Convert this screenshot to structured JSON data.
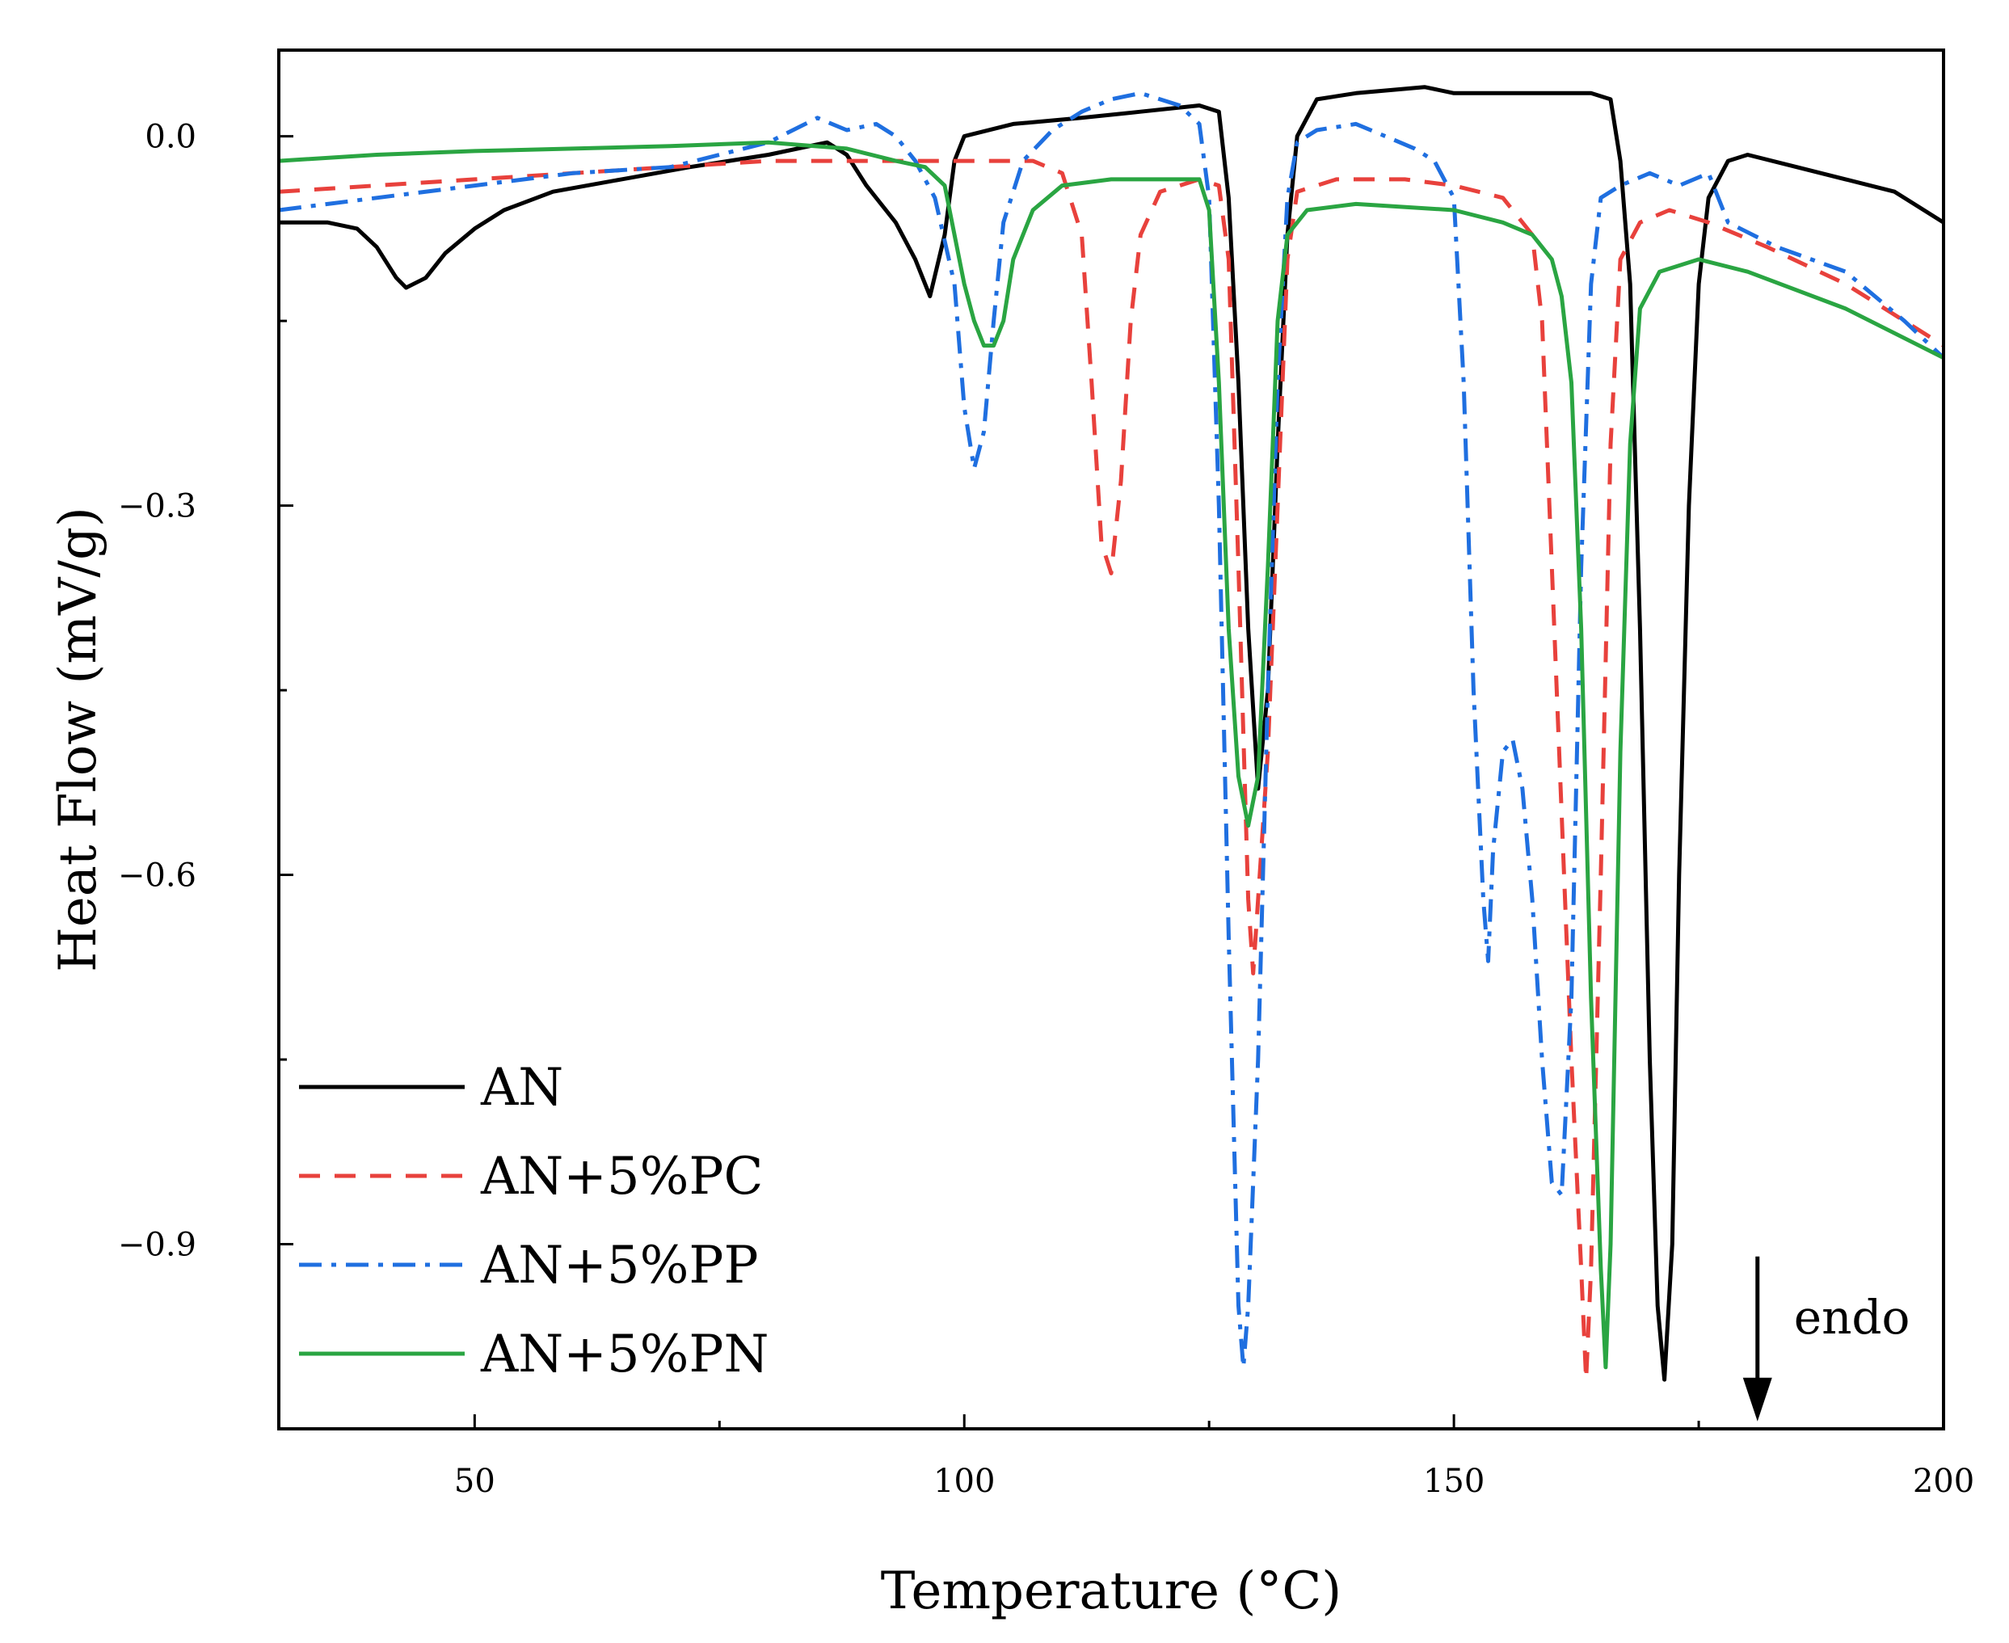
{
  "chart_data": {
    "type": "line",
    "title": "",
    "xlabel": "Temperature (°C)",
    "ylabel": "Heat Flow (mV/g)",
    "xlim": [
      30,
      200
    ],
    "ylim": [
      -1.05,
      0.07
    ],
    "x_ticks": [
      50,
      100,
      150,
      200
    ],
    "y_ticks": [
      0.0,
      -0.3,
      -0.6,
      -0.9
    ],
    "x_tick_labels": [
      "50",
      "100",
      "150",
      "200"
    ],
    "y_tick_labels": [
      "0.0",
      "−0.3",
      "−0.6",
      "−0.9"
    ],
    "legend_position": "bottom-left",
    "annotation": {
      "text": "endo",
      "arrow_x": 181,
      "arrow_y_from": -0.91,
      "arrow_y_to": -1.04
    },
    "series": [
      {
        "name": "AN",
        "color": "#000000",
        "dash": "solid",
        "points": [
          [
            30,
            -0.07
          ],
          [
            35,
            -0.07
          ],
          [
            38,
            -0.075
          ],
          [
            40,
            -0.09
          ],
          [
            42,
            -0.115
          ],
          [
            43,
            -0.123
          ],
          [
            45,
            -0.115
          ],
          [
            47,
            -0.095
          ],
          [
            50,
            -0.075
          ],
          [
            53,
            -0.06
          ],
          [
            58,
            -0.045
          ],
          [
            65,
            -0.035
          ],
          [
            72,
            -0.025
          ],
          [
            80,
            -0.015
          ],
          [
            86,
            -0.005
          ],
          [
            88,
            -0.015
          ],
          [
            90,
            -0.04
          ],
          [
            93,
            -0.07
          ],
          [
            95,
            -0.1
          ],
          [
            96.5,
            -0.13
          ],
          [
            98,
            -0.08
          ],
          [
            99,
            -0.02
          ],
          [
            100,
            0.0
          ],
          [
            105,
            0.01
          ],
          [
            112,
            0.015
          ],
          [
            118,
            0.02
          ],
          [
            124,
            0.025
          ],
          [
            126,
            0.02
          ],
          [
            127,
            -0.05
          ],
          [
            128,
            -0.2
          ],
          [
            129,
            -0.4
          ],
          [
            130,
            -0.53
          ],
          [
            131,
            -0.45
          ],
          [
            132,
            -0.25
          ],
          [
            133,
            -0.08
          ],
          [
            134,
            0.0
          ],
          [
            136,
            0.03
          ],
          [
            140,
            0.035
          ],
          [
            147,
            0.04
          ],
          [
            150,
            0.035
          ],
          [
            158,
            0.035
          ],
          [
            164,
            0.035
          ],
          [
            166,
            0.03
          ],
          [
            167,
            -0.02
          ],
          [
            168,
            -0.12
          ],
          [
            169,
            -0.4
          ],
          [
            170,
            -0.75
          ],
          [
            170.8,
            -0.95
          ],
          [
            171.5,
            -1.01
          ],
          [
            172.3,
            -0.9
          ],
          [
            173,
            -0.6
          ],
          [
            174,
            -0.3
          ],
          [
            175,
            -0.12
          ],
          [
            176,
            -0.05
          ],
          [
            178,
            -0.02
          ],
          [
            180,
            -0.015
          ],
          [
            185,
            -0.025
          ],
          [
            190,
            -0.035
          ],
          [
            195,
            -0.045
          ],
          [
            200,
            -0.07
          ]
        ]
      },
      {
        "name": "AN+5%PC",
        "color": "#e8413c",
        "dash": "dashed",
        "points": [
          [
            30,
            -0.045
          ],
          [
            40,
            -0.04
          ],
          [
            50,
            -0.035
          ],
          [
            60,
            -0.03
          ],
          [
            70,
            -0.025
          ],
          [
            80,
            -0.02
          ],
          [
            90,
            -0.02
          ],
          [
            100,
            -0.02
          ],
          [
            107,
            -0.02
          ],
          [
            110,
            -0.03
          ],
          [
            112,
            -0.08
          ],
          [
            113,
            -0.2
          ],
          [
            114,
            -0.33
          ],
          [
            115,
            -0.355
          ],
          [
            116,
            -0.28
          ],
          [
            117,
            -0.15
          ],
          [
            118,
            -0.08
          ],
          [
            120,
            -0.045
          ],
          [
            124,
            -0.035
          ],
          [
            126,
            -0.04
          ],
          [
            127,
            -0.1
          ],
          [
            128,
            -0.35
          ],
          [
            129,
            -0.62
          ],
          [
            129.5,
            -0.68
          ],
          [
            130,
            -0.62
          ],
          [
            131,
            -0.5
          ],
          [
            132,
            -0.3
          ],
          [
            133,
            -0.1
          ],
          [
            134,
            -0.045
          ],
          [
            138,
            -0.035
          ],
          [
            145,
            -0.035
          ],
          [
            150,
            -0.04
          ],
          [
            155,
            -0.05
          ],
          [
            158,
            -0.08
          ],
          [
            159,
            -0.15
          ],
          [
            160,
            -0.35
          ],
          [
            161,
            -0.55
          ],
          [
            162,
            -0.75
          ],
          [
            163,
            -0.92
          ],
          [
            163.5,
            -1.01
          ],
          [
            164,
            -0.92
          ],
          [
            165,
            -0.6
          ],
          [
            166,
            -0.25
          ],
          [
            167,
            -0.1
          ],
          [
            169,
            -0.07
          ],
          [
            172,
            -0.06
          ],
          [
            176,
            -0.07
          ],
          [
            182,
            -0.09
          ],
          [
            190,
            -0.12
          ],
          [
            200,
            -0.17
          ]
        ]
      },
      {
        "name": "AN+5%PP",
        "color": "#1f6fe0",
        "dash": "dashdot",
        "points": [
          [
            30,
            -0.06
          ],
          [
            40,
            -0.05
          ],
          [
            50,
            -0.04
          ],
          [
            60,
            -0.03
          ],
          [
            70,
            -0.025
          ],
          [
            75,
            -0.015
          ],
          [
            80,
            -0.005
          ],
          [
            85,
            0.015
          ],
          [
            88,
            0.005
          ],
          [
            91,
            0.01
          ],
          [
            93,
            0.0
          ],
          [
            95,
            -0.02
          ],
          [
            97,
            -0.05
          ],
          [
            99,
            -0.12
          ],
          [
            100,
            -0.22
          ],
          [
            101,
            -0.27
          ],
          [
            102,
            -0.24
          ],
          [
            103,
            -0.15
          ],
          [
            104,
            -0.07
          ],
          [
            106,
            -0.02
          ],
          [
            109,
            0.005
          ],
          [
            112,
            0.02
          ],
          [
            115,
            0.03
          ],
          [
            118,
            0.035
          ],
          [
            122,
            0.025
          ],
          [
            124,
            0.01
          ],
          [
            125,
            -0.05
          ],
          [
            126,
            -0.3
          ],
          [
            127,
            -0.65
          ],
          [
            128,
            -0.95
          ],
          [
            128.5,
            -1.0
          ],
          [
            129,
            -0.95
          ],
          [
            130,
            -0.75
          ],
          [
            131,
            -0.45
          ],
          [
            132,
            -0.2
          ],
          [
            133,
            -0.05
          ],
          [
            134,
            -0.005
          ],
          [
            136,
            0.005
          ],
          [
            140,
            0.01
          ],
          [
            143,
            0.0
          ],
          [
            146,
            -0.01
          ],
          [
            148,
            -0.02
          ],
          [
            150,
            -0.05
          ],
          [
            151,
            -0.2
          ],
          [
            152,
            -0.45
          ],
          [
            153,
            -0.62
          ],
          [
            153.5,
            -0.67
          ],
          [
            154,
            -0.58
          ],
          [
            155,
            -0.5
          ],
          [
            156,
            -0.49
          ],
          [
            157,
            -0.53
          ],
          [
            158,
            -0.62
          ],
          [
            159,
            -0.75
          ],
          [
            160,
            -0.85
          ],
          [
            161,
            -0.86
          ],
          [
            162,
            -0.7
          ],
          [
            163,
            -0.35
          ],
          [
            164,
            -0.12
          ],
          [
            165,
            -0.05
          ],
          [
            167,
            -0.04
          ],
          [
            170,
            -0.03
          ],
          [
            173,
            -0.04
          ],
          [
            176,
            -0.03
          ],
          [
            178,
            -0.07
          ],
          [
            183,
            -0.09
          ],
          [
            190,
            -0.11
          ],
          [
            196,
            -0.15
          ],
          [
            200,
            -0.18
          ]
        ]
      },
      {
        "name": "AN+5%PN",
        "color": "#2aa542",
        "dash": "solid",
        "points": [
          [
            30,
            -0.02
          ],
          [
            40,
            -0.015
          ],
          [
            50,
            -0.012
          ],
          [
            60,
            -0.01
          ],
          [
            70,
            -0.008
          ],
          [
            80,
            -0.005
          ],
          [
            88,
            -0.01
          ],
          [
            93,
            -0.02
          ],
          [
            96,
            -0.025
          ],
          [
            98,
            -0.04
          ],
          [
            99,
            -0.08
          ],
          [
            100,
            -0.12
          ],
          [
            101,
            -0.15
          ],
          [
            102,
            -0.17
          ],
          [
            103,
            -0.17
          ],
          [
            104,
            -0.15
          ],
          [
            105,
            -0.1
          ],
          [
            107,
            -0.06
          ],
          [
            110,
            -0.04
          ],
          [
            115,
            -0.035
          ],
          [
            124,
            -0.035
          ],
          [
            125,
            -0.06
          ],
          [
            126,
            -0.2
          ],
          [
            127,
            -0.4
          ],
          [
            128,
            -0.52
          ],
          [
            129,
            -0.56
          ],
          [
            130,
            -0.52
          ],
          [
            131,
            -0.35
          ],
          [
            132,
            -0.15
          ],
          [
            133,
            -0.08
          ],
          [
            135,
            -0.06
          ],
          [
            140,
            -0.055
          ],
          [
            150,
            -0.06
          ],
          [
            155,
            -0.07
          ],
          [
            158,
            -0.08
          ],
          [
            160,
            -0.1
          ],
          [
            161,
            -0.13
          ],
          [
            162,
            -0.2
          ],
          [
            163,
            -0.4
          ],
          [
            164,
            -0.7
          ],
          [
            165,
            -0.92
          ],
          [
            165.5,
            -1.0
          ],
          [
            166,
            -0.9
          ],
          [
            167,
            -0.5
          ],
          [
            168,
            -0.25
          ],
          [
            169,
            -0.14
          ],
          [
            171,
            -0.11
          ],
          [
            175,
            -0.1
          ],
          [
            180,
            -0.11
          ],
          [
            190,
            -0.14
          ],
          [
            200,
            -0.18
          ]
        ]
      }
    ]
  }
}
